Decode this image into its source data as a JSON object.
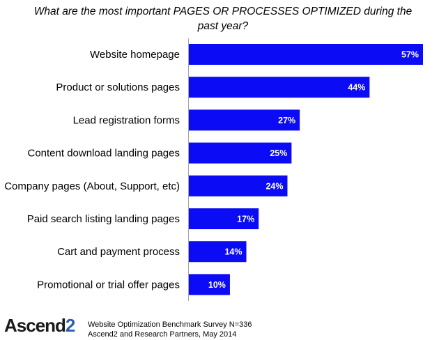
{
  "chart_data": {
    "type": "bar",
    "orientation": "horizontal",
    "title": "What are the most important PAGES OR PROCESSES OPTIMIZED during the past year?",
    "categories": [
      "Website homepage",
      "Product or solutions pages",
      "Lead registration forms",
      "Content download landing pages",
      "Company pages (About, Support, etc)",
      "Paid search listing landing pages",
      "Cart and payment process",
      "Promotional or trial offer pages"
    ],
    "values": [
      57,
      44,
      27,
      25,
      24,
      17,
      14,
      10
    ],
    "value_labels": [
      "57%",
      "44%",
      "27%",
      "25%",
      "24%",
      "17%",
      "14%",
      "10%"
    ],
    "unit": "%",
    "xlim": [
      0,
      57
    ],
    "grid": false,
    "bar_color": "#0b0bf5"
  },
  "footer": {
    "logo_main": "Ascend",
    "logo_accent": "2",
    "source_line1": "Website Optimization Benchmark Survey N=336",
    "source_line2": "Ascend2 and Research Partners, May 2014"
  }
}
